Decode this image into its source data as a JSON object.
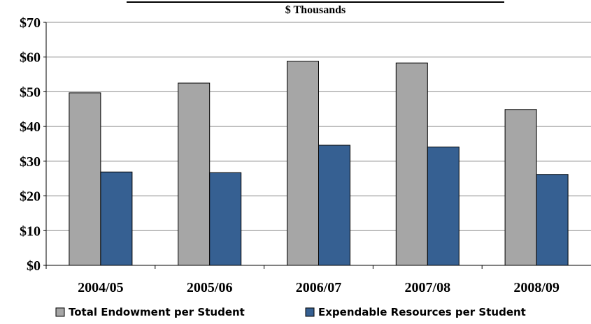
{
  "chart_data": {
    "type": "bar",
    "title": "",
    "subtitle": "$ Thousands",
    "xlabel": "",
    "ylabel": "",
    "categories": [
      "2004/05",
      "2005/06",
      "2006/07",
      "2007/08",
      "2008/09"
    ],
    "series": [
      {
        "name": "Total Endowment per Student",
        "color": "#a6a6a6",
        "values": [
          49.7,
          52.5,
          58.8,
          58.3,
          44.9
        ]
      },
      {
        "name": "Expendable Resources per Student",
        "color": "#366092",
        "values": [
          26.9,
          26.7,
          34.6,
          34.1,
          26.2
        ]
      }
    ],
    "ylim": [
      0,
      70
    ],
    "yticks": [
      0,
      10,
      20,
      30,
      40,
      50,
      60,
      70
    ],
    "ytick_labels": [
      "$0",
      "$10",
      "$20",
      "$30",
      "$40",
      "$50",
      "$60",
      "$70"
    ],
    "grid": true,
    "legend_position": "bottom"
  }
}
